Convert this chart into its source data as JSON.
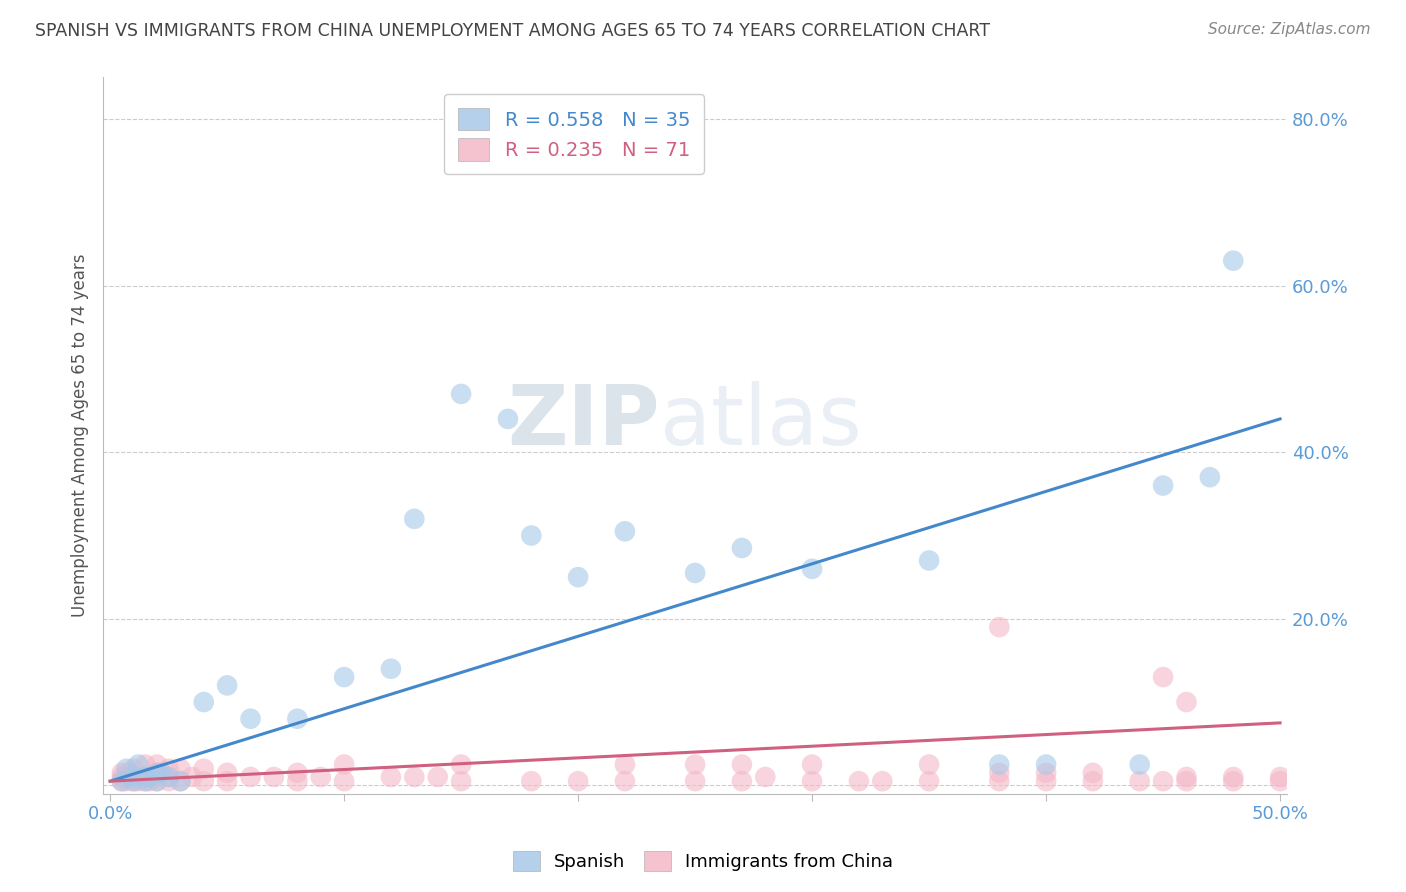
{
  "title": "SPANISH VS IMMIGRANTS FROM CHINA UNEMPLOYMENT AMONG AGES 65 TO 74 YEARS CORRELATION CHART",
  "source": "Source: ZipAtlas.com",
  "ylabel": "Unemployment Among Ages 65 to 74 years",
  "xlim": [
    0.0,
    0.5
  ],
  "ylim": [
    -0.01,
    0.85
  ],
  "yticks": [
    0.0,
    0.2,
    0.4,
    0.6,
    0.8
  ],
  "ytick_labels": [
    "",
    "20.0%",
    "40.0%",
    "60.0%",
    "80.0%"
  ],
  "watermark": "ZIPatlas",
  "legend_spanish_R": "R = 0.558",
  "legend_spanish_N": "N = 35",
  "legend_china_R": "R = 0.235",
  "legend_china_N": "N = 71",
  "spanish_color": "#a8c8e8",
  "china_color": "#f4b8c8",
  "spanish_line_color": "#4488cc",
  "china_line_color": "#d06080",
  "background_color": "#ffffff",
  "grid_color": "#cccccc",
  "title_color": "#444444",
  "axis_label_color": "#5b9bd5",
  "spanish_x": [
    0.005,
    0.007,
    0.01,
    0.01,
    0.012,
    0.015,
    0.015,
    0.017,
    0.02,
    0.02,
    0.022,
    0.025,
    0.03,
    0.04,
    0.05,
    0.06,
    0.08,
    0.1,
    0.12,
    0.13,
    0.15,
    0.17,
    0.18,
    0.2,
    0.22,
    0.25,
    0.27,
    0.3,
    0.35,
    0.38,
    0.4,
    0.44,
    0.45,
    0.47,
    0.48
  ],
  "spanish_y": [
    0.005,
    0.02,
    0.005,
    0.01,
    0.025,
    0.005,
    0.01,
    0.01,
    0.005,
    0.015,
    0.015,
    0.01,
    0.005,
    0.1,
    0.12,
    0.08,
    0.08,
    0.13,
    0.14,
    0.32,
    0.47,
    0.44,
    0.3,
    0.25,
    0.305,
    0.255,
    0.285,
    0.26,
    0.27,
    0.025,
    0.025,
    0.025,
    0.36,
    0.37,
    0.63
  ],
  "china_x": [
    0.005,
    0.005,
    0.005,
    0.007,
    0.008,
    0.01,
    0.01,
    0.01,
    0.012,
    0.012,
    0.015,
    0.015,
    0.015,
    0.017,
    0.02,
    0.02,
    0.02,
    0.025,
    0.025,
    0.025,
    0.03,
    0.03,
    0.035,
    0.04,
    0.04,
    0.05,
    0.05,
    0.06,
    0.07,
    0.08,
    0.08,
    0.09,
    0.1,
    0.1,
    0.12,
    0.13,
    0.14,
    0.15,
    0.15,
    0.18,
    0.2,
    0.22,
    0.22,
    0.25,
    0.25,
    0.27,
    0.27,
    0.28,
    0.3,
    0.3,
    0.32,
    0.33,
    0.35,
    0.35,
    0.38,
    0.38,
    0.4,
    0.4,
    0.42,
    0.42,
    0.44,
    0.45,
    0.46,
    0.46,
    0.48,
    0.48,
    0.5,
    0.5,
    0.38,
    0.45,
    0.46
  ],
  "china_y": [
    0.005,
    0.01,
    0.015,
    0.005,
    0.015,
    0.005,
    0.01,
    0.02,
    0.005,
    0.01,
    0.005,
    0.01,
    0.025,
    0.005,
    0.005,
    0.015,
    0.025,
    0.005,
    0.01,
    0.02,
    0.005,
    0.02,
    0.01,
    0.005,
    0.02,
    0.005,
    0.015,
    0.01,
    0.01,
    0.005,
    0.015,
    0.01,
    0.005,
    0.025,
    0.01,
    0.01,
    0.01,
    0.005,
    0.025,
    0.005,
    0.005,
    0.005,
    0.025,
    0.005,
    0.025,
    0.005,
    0.025,
    0.01,
    0.005,
    0.025,
    0.005,
    0.005,
    0.005,
    0.025,
    0.005,
    0.015,
    0.005,
    0.015,
    0.005,
    0.015,
    0.005,
    0.005,
    0.005,
    0.01,
    0.005,
    0.01,
    0.005,
    0.01,
    0.19,
    0.13,
    0.1
  ],
  "spanish_line_x0": 0.0,
  "spanish_line_y0": 0.005,
  "spanish_line_x1": 0.5,
  "spanish_line_y1": 0.44,
  "china_line_x0": 0.0,
  "china_line_y0": 0.005,
  "china_line_x1": 0.5,
  "china_line_y1": 0.075
}
